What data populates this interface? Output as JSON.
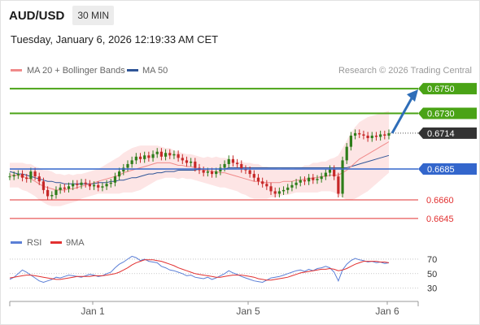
{
  "header": {
    "symbol": "AUD/USD",
    "timeframe": "30 MIN"
  },
  "datetime": "Tuesday, January 6, 2026 12:19:33 AM CET",
  "legend": [
    {
      "label": "MA 20 + Bollinger Bands",
      "color": "#f08a8a"
    },
    {
      "label": "MA 50",
      "color": "#2f5597"
    }
  ],
  "source": "Research © 2026 Trading Central",
  "colors": {
    "green": "#4aa316",
    "blue": "#3366cc",
    "red": "#e23030",
    "dark": "#333333",
    "band": "#fde0e0",
    "up": "#2e7d1a",
    "down": "#c62828",
    "arrow": "#2e6db8"
  },
  "chart_data": [
    {
      "type": "candlestick",
      "y_range": [
        0.6639,
        0.6756
      ],
      "x_ticks": [
        "Jan 1",
        "Jan 5",
        "Jan 6"
      ],
      "levels": [
        {
          "label": "0.6750",
          "value": 0.675,
          "style": "green"
        },
        {
          "label": "0.6730",
          "value": 0.673,
          "style": "green"
        },
        {
          "label": "0.6714",
          "value": 0.6714,
          "style": "last"
        },
        {
          "label": "0.6685",
          "value": 0.6685,
          "style": "blue"
        },
        {
          "label": "0.6660",
          "value": 0.666,
          "style": "red"
        },
        {
          "label": "0.6645",
          "value": 0.6645,
          "style": "red"
        }
      ],
      "price_series": [
        0.6679,
        0.668,
        0.6681,
        0.6678,
        0.6677,
        0.6683,
        0.6679,
        0.6675,
        0.6668,
        0.6663,
        0.6664,
        0.6668,
        0.667,
        0.6669,
        0.6671,
        0.6673,
        0.6672,
        0.6674,
        0.6673,
        0.6671,
        0.6672,
        0.667,
        0.6671,
        0.6673,
        0.6674,
        0.6679,
        0.6683,
        0.6686,
        0.6689,
        0.6692,
        0.6695,
        0.6693,
        0.6696,
        0.6694,
        0.6697,
        0.6699,
        0.6695,
        0.6698,
        0.6696,
        0.6697,
        0.6694,
        0.6692,
        0.669,
        0.6691,
        0.6686,
        0.6684,
        0.6682,
        0.6683,
        0.6681,
        0.6683,
        0.6686,
        0.6689,
        0.6693,
        0.669,
        0.6689,
        0.6685,
        0.6684,
        0.6681,
        0.6678,
        0.6675,
        0.6673,
        0.6671,
        0.6667,
        0.6665,
        0.6667,
        0.6668,
        0.667,
        0.6672,
        0.6674,
        0.6676,
        0.6675,
        0.6678,
        0.6676,
        0.6677,
        0.6679,
        0.6682,
        0.6685,
        0.6679,
        0.6665,
        0.6692,
        0.6703,
        0.6712,
        0.6714,
        0.6713,
        0.6712,
        0.671,
        0.6712,
        0.6711,
        0.6713,
        0.6712,
        0.6714
      ],
      "ma20": [
        0.668,
        0.668,
        0.668,
        0.6679,
        0.6678,
        0.6677,
        0.6675,
        0.6673,
        0.6671,
        0.667,
        0.6669,
        0.6668,
        0.6668,
        0.6668,
        0.6669,
        0.6669,
        0.667,
        0.6671,
        0.6672,
        0.6673,
        0.6674,
        0.6675,
        0.6676,
        0.6677,
        0.6678,
        0.6679,
        0.668,
        0.6682,
        0.6683,
        0.6684,
        0.6685,
        0.6686,
        0.6687,
        0.6688,
        0.6689,
        0.669,
        0.669,
        0.669,
        0.669,
        0.6689,
        0.6688,
        0.6688,
        0.6687,
        0.6687,
        0.6686,
        0.6685,
        0.6684,
        0.6684,
        0.6683,
        0.6683,
        0.6682,
        0.6682,
        0.6681,
        0.668,
        0.6679,
        0.6678,
        0.6677,
        0.6676,
        0.6675,
        0.6675,
        0.6674,
        0.6674,
        0.6674,
        0.6674,
        0.6674,
        0.6675,
        0.6675,
        0.6675,
        0.6676,
        0.6676,
        0.6677,
        0.6677,
        0.6678,
        0.6678,
        0.6679,
        0.6679,
        0.668,
        0.668,
        0.668,
        0.6682,
        0.6684,
        0.6687,
        0.669,
        0.6693,
        0.6695,
        0.6697,
        0.6699,
        0.6701,
        0.6703,
        0.6705,
        0.6707
      ],
      "ma50": [
        0.6683,
        0.6682,
        0.6681,
        0.6681,
        0.668,
        0.6679,
        0.6678,
        0.6677,
        0.6676,
        0.6675,
        0.6675,
        0.6674,
        0.6674,
        0.6673,
        0.6673,
        0.6673,
        0.6673,
        0.6673,
        0.6673,
        0.6673,
        0.6673,
        0.6674,
        0.6674,
        0.6674,
        0.6675,
        0.6675,
        0.6676,
        0.6676,
        0.6677,
        0.6678,
        0.6678,
        0.6679,
        0.668,
        0.6681,
        0.6681,
        0.6682,
        0.6682,
        0.6683,
        0.6683,
        0.6683,
        0.6684,
        0.6684,
        0.6684,
        0.6684,
        0.6684,
        0.6685,
        0.6685,
        0.6685,
        0.6685,
        0.6685,
        0.6685,
        0.6685,
        0.6686,
        0.6686,
        0.6686,
        0.6686,
        0.6686,
        0.6686,
        0.6686,
        0.6686,
        0.6686,
        0.6686,
        0.6686,
        0.6686,
        0.6686,
        0.6686,
        0.6686,
        0.6686,
        0.6686,
        0.6686,
        0.6686,
        0.6686,
        0.6686,
        0.6686,
        0.6686,
        0.6686,
        0.6686,
        0.6686,
        0.6686,
        0.6686,
        0.6686,
        0.6687,
        0.6688,
        0.6689,
        0.669,
        0.6691,
        0.6692,
        0.6693,
        0.6694,
        0.6695,
        0.6696
      ],
      "band_width": [
        0.001,
        0.001,
        0.001,
        0.0011,
        0.0011,
        0.0012,
        0.0012,
        0.0013,
        0.0013,
        0.0014,
        0.0014,
        0.0013,
        0.0013,
        0.0012,
        0.0012,
        0.0011,
        0.0011,
        0.001,
        0.001,
        0.001,
        0.001,
        0.001,
        0.0011,
        0.0012,
        0.0013,
        0.0014,
        0.0015,
        0.0016,
        0.0017,
        0.0018,
        0.0018,
        0.0018,
        0.0017,
        0.0016,
        0.0015,
        0.0014,
        0.0013,
        0.0012,
        0.0012,
        0.0011,
        0.0011,
        0.001,
        0.001,
        0.001,
        0.001,
        0.001,
        0.001,
        0.0011,
        0.0011,
        0.0012,
        0.0012,
        0.0012,
        0.0012,
        0.0012,
        0.0012,
        0.0013,
        0.0013,
        0.0014,
        0.0014,
        0.0014,
        0.0013,
        0.0013,
        0.0012,
        0.0012,
        0.0011,
        0.0011,
        0.0011,
        0.001,
        0.001,
        0.001,
        0.0011,
        0.0011,
        0.0012,
        0.0012,
        0.0012,
        0.0012,
        0.0013,
        0.0014,
        0.0016,
        0.002,
        0.0024,
        0.0027,
        0.0029,
        0.003,
        0.003,
        0.003,
        0.0029,
        0.0028,
        0.0027,
        0.0026,
        0.0025
      ]
    },
    {
      "type": "line",
      "legend": [
        "RSI",
        "9MA"
      ],
      "y_ticks": [
        70,
        50,
        30
      ],
      "y_range": [
        15,
        80
      ],
      "rsi": [
        42,
        45,
        50,
        55,
        52,
        48,
        44,
        40,
        38,
        40,
        42,
        45,
        44,
        46,
        48,
        47,
        46,
        45,
        47,
        49,
        48,
        46,
        47,
        50,
        52,
        58,
        63,
        66,
        70,
        74,
        72,
        68,
        70,
        67,
        66,
        65,
        60,
        58,
        55,
        54,
        52,
        50,
        47,
        48,
        45,
        44,
        43,
        45,
        42,
        44,
        47,
        50,
        54,
        51,
        49,
        46,
        44,
        42,
        40,
        39,
        38,
        41,
        44,
        45,
        46,
        48,
        50,
        52,
        54,
        55,
        53,
        56,
        54,
        57,
        58,
        60,
        58,
        52,
        40,
        55,
        63,
        68,
        71,
        69,
        68,
        66,
        67,
        65,
        66,
        64,
        65
      ],
      "ma9": [
        44,
        45,
        46,
        47,
        48,
        48,
        47,
        46,
        45,
        44,
        43,
        42,
        42,
        43,
        44,
        45,
        46,
        46,
        46,
        46,
        47,
        47,
        47,
        48,
        49,
        50,
        52,
        55,
        58,
        62,
        65,
        67,
        69,
        69,
        69,
        68,
        67,
        65,
        63,
        61,
        58,
        56,
        54,
        52,
        50,
        49,
        48,
        47,
        46,
        45,
        45,
        46,
        47,
        48,
        48,
        48,
        47,
        46,
        45,
        43,
        42,
        41,
        41,
        42,
        43,
        44,
        45,
        47,
        49,
        51,
        52,
        53,
        54,
        55,
        56,
        56,
        57,
        56,
        54,
        55,
        57,
        60,
        63,
        65,
        67,
        67,
        67,
        67,
        66,
        66,
        65
      ]
    }
  ]
}
